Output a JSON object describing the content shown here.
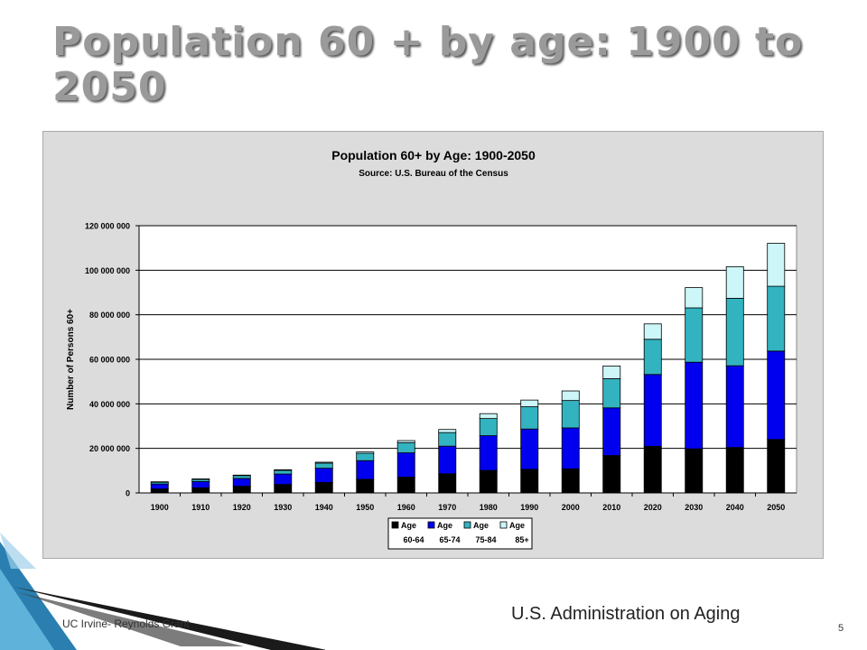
{
  "slide": {
    "title": "Population 60 + by age: 1900 to 2050",
    "footer_left": "UC Irvine- Reynolds Grant",
    "footer_right": "U.S. Administration on Aging",
    "page_number": "5"
  },
  "chart_data": {
    "type": "bar",
    "stacked": true,
    "title": "Population 60+ by Age: 1900-2050",
    "subtitle": "Source: U.S. Bureau of the Census",
    "xlabel": "",
    "ylabel": "Number of Persons 60+",
    "ylim": [
      0,
      120000000
    ],
    "yticks": [
      0,
      20000000,
      40000000,
      60000000,
      80000000,
      100000000,
      120000000
    ],
    "ytick_labels": [
      "0",
      "20 000 000",
      "40 000 000",
      "60 000 000",
      "80 000 000",
      "100 000 000",
      "120 000 000"
    ],
    "grid": true,
    "legend_position": "bottom",
    "categories": [
      "1900",
      "1910",
      "1920",
      "1930",
      "1940",
      "1950",
      "1960",
      "1970",
      "1980",
      "1990",
      "2000",
      "2010",
      "2020",
      "2030",
      "2040",
      "2050"
    ],
    "series": [
      {
        "name": "Age 60-64",
        "color": "#000000",
        "values": [
          1800000,
          2300000,
          3000000,
          3800000,
          4700000,
          6100000,
          7100000,
          8600000,
          10100000,
          10600000,
          10800000,
          16800000,
          20900000,
          19800000,
          20400000,
          24000000
        ]
      },
      {
        "name": "Age 65-74",
        "color": "#0000ee",
        "values": [
          2200000,
          2800000,
          3500000,
          4700000,
          6400000,
          8400000,
          10900000,
          12400000,
          15600000,
          18100000,
          18400000,
          21400000,
          32300000,
          38900000,
          36700000,
          39700000
        ]
      },
      {
        "name": "Age 75-84",
        "color": "#33b3c0",
        "values": [
          800000,
          1000000,
          1300000,
          1600000,
          2300000,
          3300000,
          4600000,
          6100000,
          7700000,
          10000000,
          12300000,
          13100000,
          15800000,
          24400000,
          30300000,
          29100000
        ]
      },
      {
        "name": "Age 85+",
        "color": "#ccf6f8",
        "values": [
          200000,
          200000,
          200000,
          300000,
          400000,
          600000,
          900000,
          1400000,
          2200000,
          3000000,
          4300000,
          5700000,
          6900000,
          9100000,
          14200000,
          19300000
        ]
      }
    ],
    "legend": [
      {
        "line1": "Age",
        "line2": "60-64"
      },
      {
        "line1": "Age",
        "line2": "65-74"
      },
      {
        "line1": "Age",
        "line2": "75-84"
      },
      {
        "line1": "Age",
        "line2": "85+"
      }
    ]
  }
}
